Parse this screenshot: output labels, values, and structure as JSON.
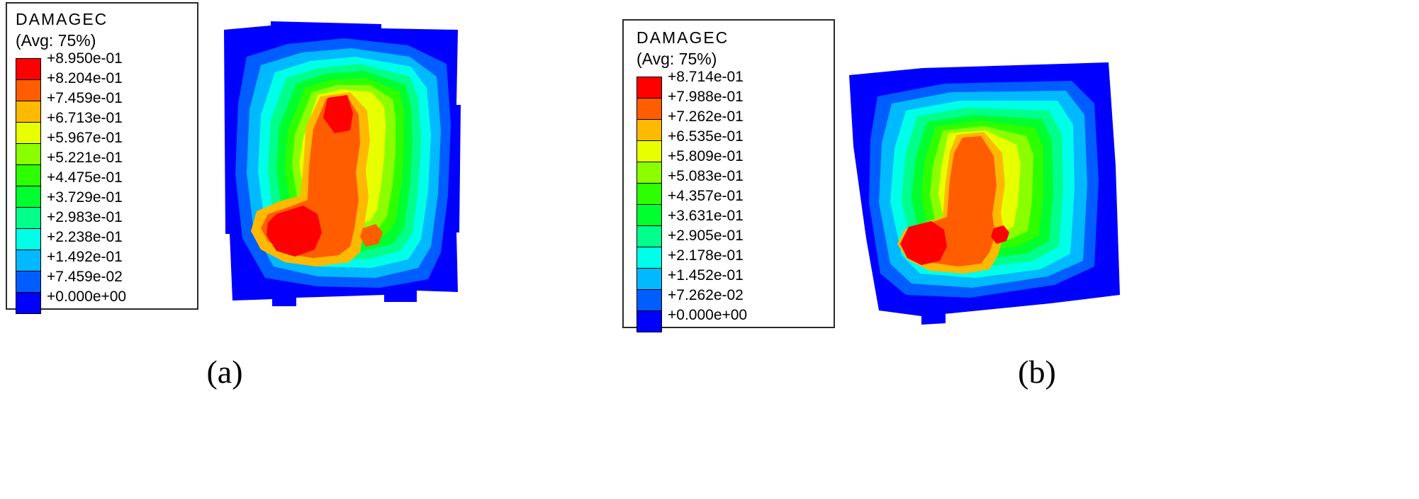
{
  "figure": {
    "spectrum": [
      "#ff0000",
      "#ff5d00",
      "#ffb900",
      "#e8ff00",
      "#8bff00",
      "#2eff00",
      "#00ff2e",
      "#00ff8b",
      "#00ffe8",
      "#00b9ff",
      "#005dff",
      "#0000ff"
    ],
    "panels": [
      {
        "caption": "(a)",
        "legend": {
          "title": "DAMAGEC",
          "subtitle": "(Avg: 75%)",
          "labels": [
            "+8.950e-01",
            "+8.204e-01",
            "+7.459e-01",
            "+6.713e-01",
            "+5.967e-01",
            "+5.221e-01",
            "+4.475e-01",
            "+3.729e-01",
            "+2.983e-01",
            "+2.238e-01",
            "+1.492e-01",
            "+7.459e-02",
            "+0.000e+00"
          ],
          "value_range": [
            0.0,
            0.895
          ]
        }
      },
      {
        "caption": "(b)",
        "legend": {
          "title": "DAMAGEC",
          "subtitle": "(Avg: 75%)",
          "labels": [
            "+8.714e-01",
            "+7.988e-01",
            "+7.262e-01",
            "+6.535e-01",
            "+5.809e-01",
            "+5.083e-01",
            "+4.357e-01",
            "+3.631e-01",
            "+2.905e-01",
            "+2.178e-01",
            "+1.452e-01",
            "+7.262e-02",
            "+0.000e+00"
          ],
          "value_range": [
            0.0,
            0.8714
          ]
        }
      }
    ]
  }
}
